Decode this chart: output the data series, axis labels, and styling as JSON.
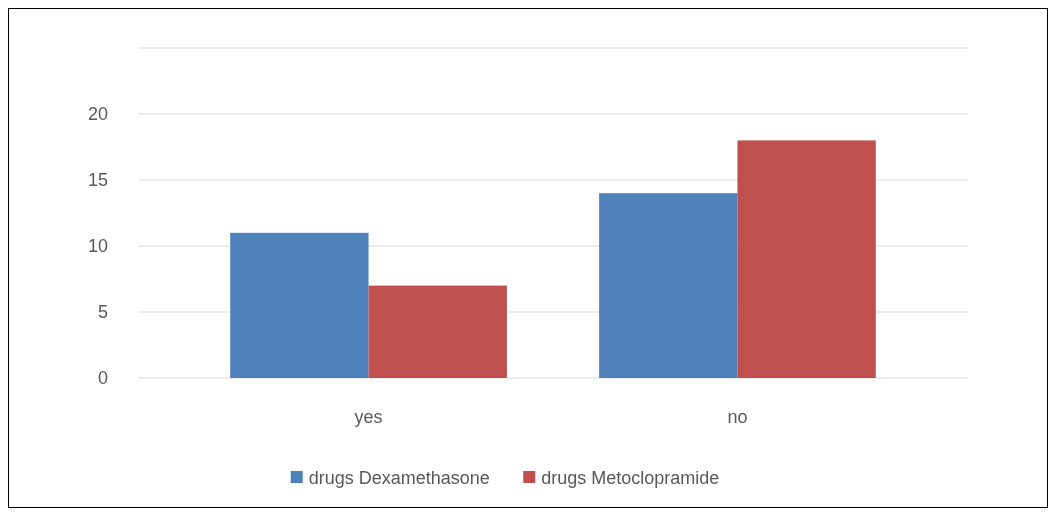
{
  "chart_data": {
    "type": "bar",
    "categories": [
      "yes",
      "no"
    ],
    "series": [
      {
        "name": "drugs Dexamethasone",
        "color": "#4f81bd",
        "values": [
          11,
          14
        ]
      },
      {
        "name": "drugs Metoclopramide",
        "color": "#c0504d",
        "values": [
          7,
          18
        ]
      }
    ],
    "ylim": [
      0,
      25
    ],
    "yticks": [
      0,
      5,
      10,
      15,
      20,
      {
        "value": 25,
        "label": null
      }
    ],
    "grid": "y",
    "legend": "bottom"
  }
}
